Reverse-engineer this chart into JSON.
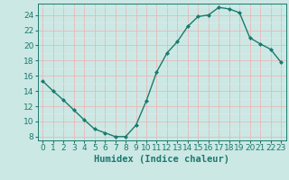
{
  "x": [
    0,
    1,
    2,
    3,
    4,
    5,
    6,
    7,
    8,
    9,
    10,
    11,
    12,
    13,
    14,
    15,
    16,
    17,
    18,
    19,
    20,
    21,
    22,
    23
  ],
  "y": [
    15.3,
    14.0,
    12.8,
    11.5,
    10.2,
    9.0,
    8.5,
    8.0,
    8.0,
    9.5,
    12.7,
    16.5,
    19.0,
    20.5,
    22.5,
    23.8,
    24.0,
    25.0,
    24.8,
    24.3,
    21.0,
    20.2,
    19.5,
    17.8
  ],
  "line_color": "#1a7a6e",
  "marker": "D",
  "marker_size": 2.0,
  "bg_color": "#cce8e4",
  "grid_major_color": "#e8b8b8",
  "grid_minor_color": "#dde8e7",
  "ylabel_ticks": [
    8,
    10,
    12,
    14,
    16,
    18,
    20,
    22,
    24
  ],
  "ylim": [
    7.5,
    25.5
  ],
  "xlim": [
    -0.5,
    23.5
  ],
  "xlabel": "Humidex (Indice chaleur)",
  "xlabel_fontsize": 7.5,
  "tick_fontsize": 6.5
}
